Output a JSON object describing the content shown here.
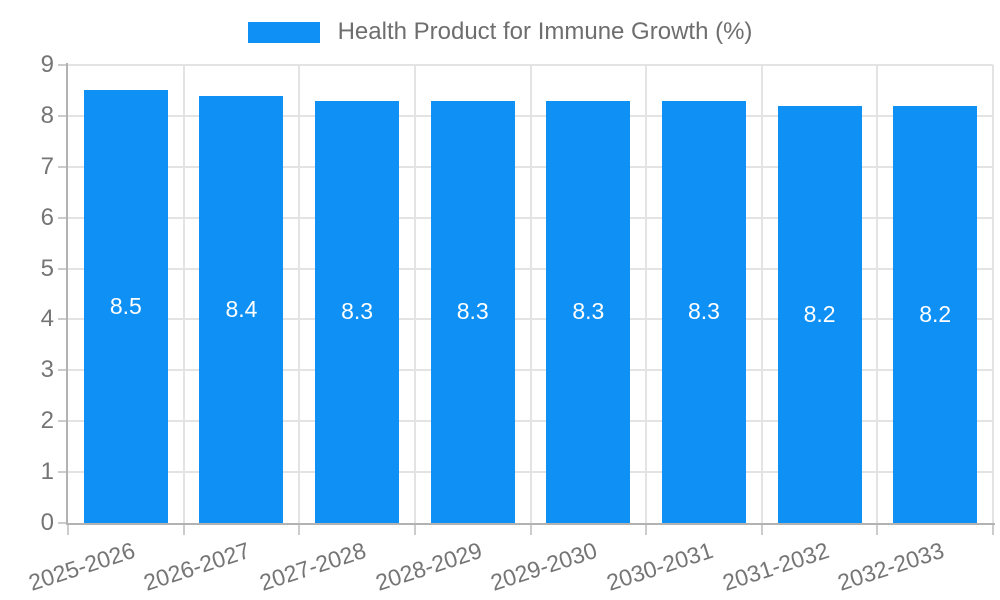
{
  "chart_data": {
    "type": "bar",
    "title": "Health Product for Immune Growth (%)",
    "categories": [
      "2025-2026",
      "2026-2027",
      "2027-2028",
      "2028-2029",
      "2029-2030",
      "2030-2031",
      "2031-2032",
      "2032-2033"
    ],
    "values": [
      8.5,
      8.4,
      8.3,
      8.3,
      8.3,
      8.3,
      8.2,
      8.2
    ],
    "value_labels": [
      "8.5",
      "8.4",
      "8.3",
      "8.3",
      "8.3",
      "8.3",
      "8.2",
      "8.2"
    ],
    "xlabel": "",
    "ylabel": "",
    "ylim": [
      0,
      9
    ],
    "yticks": [
      0,
      1,
      2,
      3,
      4,
      5,
      6,
      7,
      8,
      9
    ],
    "grid": true,
    "legend_position": "top-center",
    "value_label_position": "center-of-bar",
    "x_label_rotation_deg": -18
  },
  "legend": {
    "label": "Health Product for Immune Growth (%)",
    "swatch_color": "#0e90f5"
  },
  "colors": {
    "bar": "#0e90f5",
    "bar_value_text": "#ffffff",
    "axis_text": "#757575",
    "grid_line": "#e3e3e3",
    "axis_line": "#b2b2b2",
    "background": "#ffffff"
  }
}
